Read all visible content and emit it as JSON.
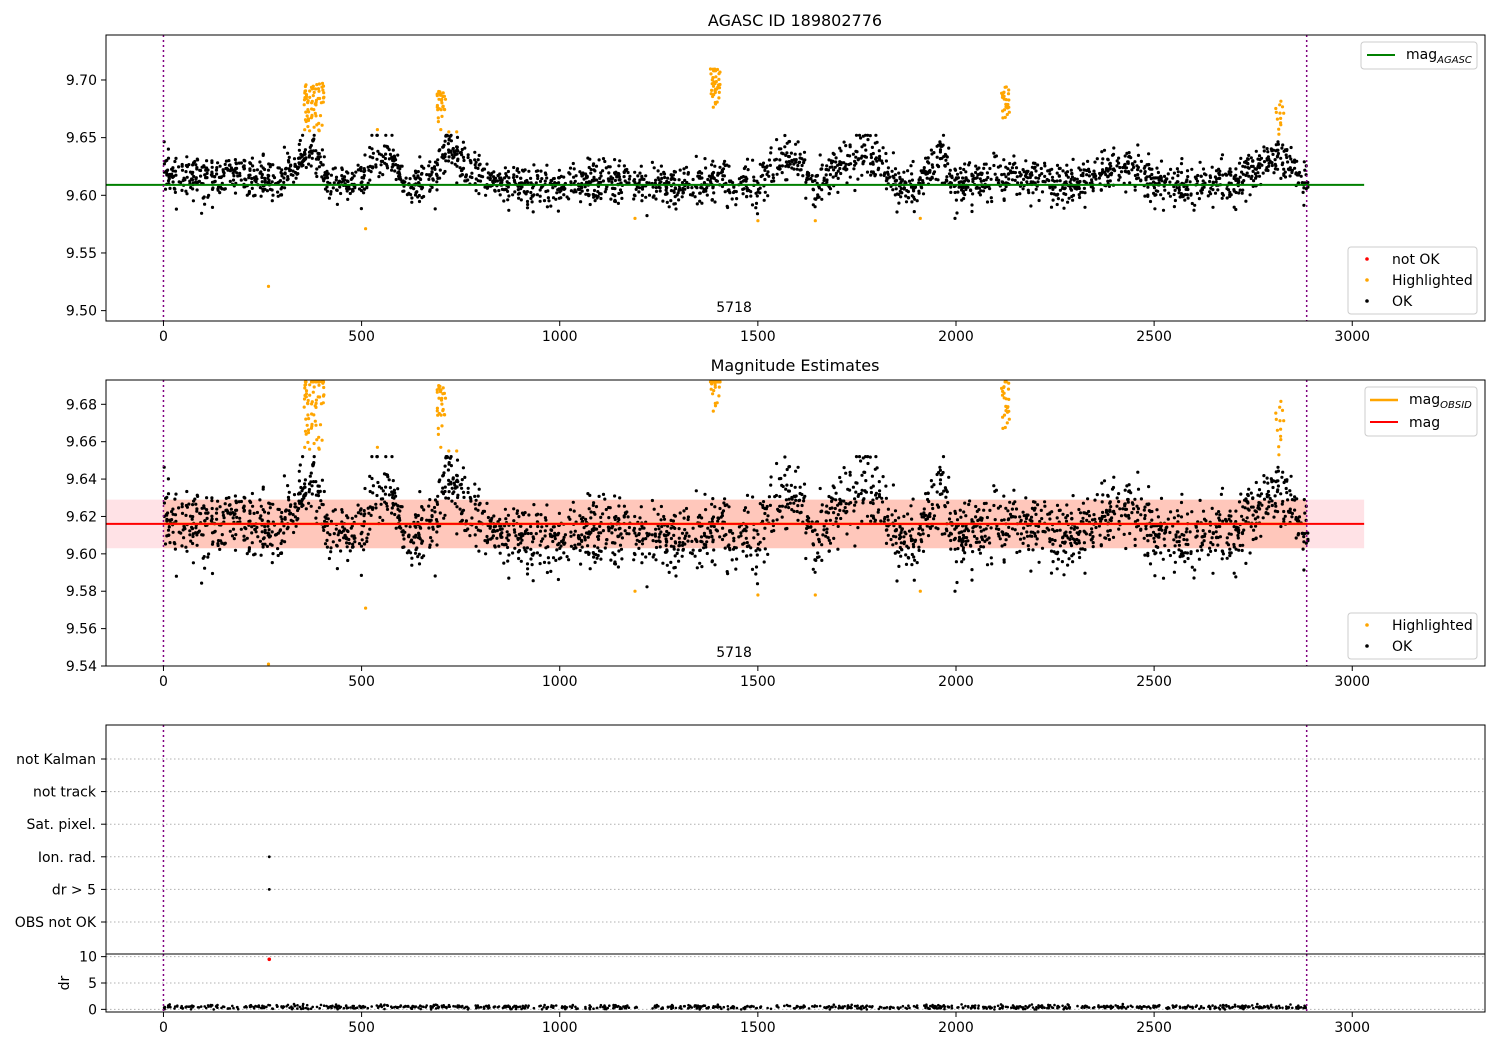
{
  "chart_data": [
    {
      "type": "scatter",
      "title": "AGASC ID 189802776",
      "xlim": [
        -145,
        3335
      ],
      "ylim": [
        9.491,
        9.739
      ],
      "x_ticks": [
        0,
        500,
        1000,
        1500,
        2000,
        2500,
        3000
      ],
      "y_ticks": [
        "9.50",
        "9.55",
        "9.60",
        "9.65",
        "9.70"
      ],
      "grid": false,
      "annotation": "5718",
      "annotation_x": 1440,
      "vertical_lines": [
        0,
        2885
      ],
      "reference_line": {
        "name": "mag",
        "name_sub": "AGASC",
        "value": 9.609,
        "x_range": [
          -145,
          3030
        ],
        "color": "#008000"
      },
      "series": [
        {
          "name": "not OK",
          "color": "#ff0000",
          "count": 0,
          "points": []
        },
        {
          "name": "Highlighted",
          "color": "#ffa500",
          "points": [
            [
              265,
              9.521
            ],
            [
              510,
              9.571
            ],
            [
              1190,
              9.58
            ],
            [
              1500,
              9.578
            ],
            [
              1645,
              9.578
            ],
            [
              1910,
              9.58
            ],
            [
              540,
              9.657
            ],
            [
              700,
              9.657
            ],
            [
              720,
              9.655
            ],
            [
              740,
              9.655
            ],
            [
              2815,
              9.653
            ]
          ],
          "clusters": [
            {
              "x_min": 355,
              "x_max": 405,
              "y_min": 9.655,
              "y_max": 9.698,
              "count": 70
            },
            {
              "x_min": 690,
              "x_max": 715,
              "y_min": 9.66,
              "y_max": 9.69,
              "count": 28
            },
            {
              "x_min": 1380,
              "x_max": 1405,
              "y_min": 9.668,
              "y_max": 9.71,
              "count": 40
            },
            {
              "x_min": 2115,
              "x_max": 2135,
              "y_min": 9.666,
              "y_max": 9.694,
              "count": 25
            },
            {
              "x_min": 2800,
              "x_max": 2830,
              "y_min": 9.652,
              "y_max": 9.682,
              "count": 12
            }
          ]
        },
        {
          "name": "OK",
          "color": "#000000",
          "x_range": [
            0,
            2890
          ],
          "count": 2600,
          "baseline_profile": [
            [
              0,
              9.622
            ],
            [
              100,
              9.614
            ],
            [
              200,
              9.618
            ],
            [
              300,
              9.612
            ],
            [
              350,
              9.632
            ],
            [
              380,
              9.64
            ],
            [
              420,
              9.608
            ],
            [
              500,
              9.612
            ],
            [
              530,
              9.635
            ],
            [
              580,
              9.632
            ],
            [
              620,
              9.605
            ],
            [
              680,
              9.615
            ],
            [
              720,
              9.64
            ],
            [
              800,
              9.612
            ],
            [
              900,
              9.607
            ],
            [
              1000,
              9.608
            ],
            [
              1100,
              9.612
            ],
            [
              1200,
              9.61
            ],
            [
              1300,
              9.607
            ],
            [
              1400,
              9.614
            ],
            [
              1500,
              9.607
            ],
            [
              1550,
              9.63
            ],
            [
              1600,
              9.63
            ],
            [
              1650,
              9.603
            ],
            [
              1700,
              9.628
            ],
            [
              1800,
              9.633
            ],
            [
              1850,
              9.612
            ],
            [
              1900,
              9.607
            ],
            [
              1960,
              9.635
            ],
            [
              2000,
              9.608
            ],
            [
              2100,
              9.617
            ],
            [
              2200,
              9.612
            ],
            [
              2300,
              9.61
            ],
            [
              2420,
              9.625
            ],
            [
              2500,
              9.612
            ],
            [
              2600,
              9.607
            ],
            [
              2700,
              9.61
            ],
            [
              2780,
              9.63
            ],
            [
              2820,
              9.635
            ],
            [
              2890,
              9.605
            ]
          ],
          "spread": 0.015
        }
      ],
      "legends": [
        {
          "position": "upper-right",
          "entries": [
            "mag_AGASC"
          ]
        },
        {
          "position": "lower-right",
          "entries": [
            "not OK",
            "Highlighted",
            "OK"
          ]
        }
      ]
    },
    {
      "type": "scatter",
      "title": "Magnitude Estimates",
      "xlim": [
        -145,
        3335
      ],
      "ylim": [
        9.54,
        9.693
      ],
      "x_ticks": [
        0,
        500,
        1000,
        1500,
        2000,
        2500,
        3000
      ],
      "y_ticks": [
        "9.54",
        "9.56",
        "9.58",
        "9.60",
        "9.62",
        "9.64",
        "9.66",
        "9.68"
      ],
      "grid": false,
      "annotation": "5718",
      "annotation_x": 1440,
      "vertical_lines": [
        0,
        2885
      ],
      "bands": [
        {
          "y": [
            9.603,
            9.629
          ],
          "x_range": [
            -145,
            3030
          ],
          "color": "#ffb6c1",
          "opacity": 0.4
        },
        {
          "y": [
            9.603,
            9.629
          ],
          "x_range": [
            0,
            2885
          ],
          "color": "#ffa07a",
          "opacity": 0.4
        }
      ],
      "lines": [
        {
          "name": "mag",
          "name_sub": "OBSID",
          "value": 9.616,
          "x_range": [
            0,
            2885
          ],
          "color": "#ffa500"
        },
        {
          "name": "mag",
          "value": 9.616,
          "x_range": [
            -145,
            3030
          ],
          "color": "#ff0000"
        }
      ],
      "series": [
        {
          "name": "Highlighted",
          "color": "#ffa500",
          "clipped_top": true
        },
        {
          "name": "OK",
          "color": "#000000"
        }
      ],
      "legends": [
        {
          "position": "upper-right",
          "entries": [
            "mag_OBSID",
            "mag"
          ]
        },
        {
          "position": "lower-right",
          "entries": [
            "Highlighted",
            "OK"
          ]
        }
      ]
    },
    {
      "type": "scatter",
      "title": "",
      "xlim": [
        -145,
        3335
      ],
      "categories": [
        "not Kalman",
        "not track",
        "Sat. pixel.",
        "Ion. rad.",
        "dr > 5",
        "OBS not OK"
      ],
      "flag_points": [
        {
          "category": "Ion. rad.",
          "x": 267
        },
        {
          "category": "dr > 5",
          "x": 267
        }
      ],
      "grid": "horizontal-dotted",
      "vertical_lines": [
        0,
        2885
      ]
    },
    {
      "type": "line",
      "title": "",
      "ylabel": "dr",
      "xlim": [
        -145,
        3335
      ],
      "ylim": [
        -0.5,
        10.5
      ],
      "x_ticks": [
        0,
        500,
        1000,
        1500,
        2000,
        2500,
        3000
      ],
      "y_ticks": [
        "0",
        "5",
        "10"
      ],
      "grid": "horizontal-dotted",
      "vertical_lines": [
        0,
        2885
      ],
      "outlier": {
        "x": 267,
        "y": 9.5,
        "color": "#ff0000"
      },
      "series": [
        {
          "color": "#000000",
          "x_range": [
            0,
            2885
          ],
          "y_mean": 0.45,
          "y_max": 1.0
        }
      ]
    }
  ]
}
